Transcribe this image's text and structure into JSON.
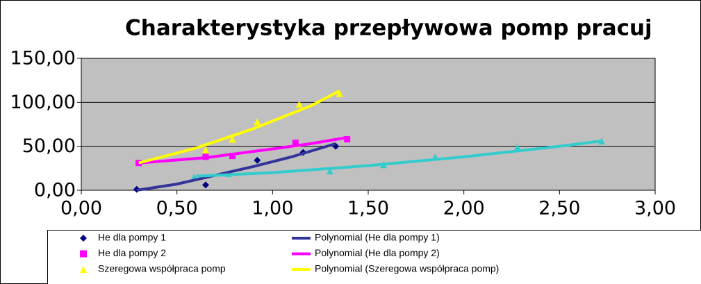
{
  "chart_data": {
    "type": "scatter",
    "title": "Charakterystyka przepływowa pomp pracuj",
    "xlim": [
      0,
      3
    ],
    "ylim": [
      0,
      150
    ],
    "xticks": [
      {
        "value": 0,
        "label": "0,00"
      },
      {
        "value": 0.5,
        "label": "0,50"
      },
      {
        "value": 1,
        "label": "1,00"
      },
      {
        "value": 1.5,
        "label": "1,50"
      },
      {
        "value": 2,
        "label": "2,00"
      },
      {
        "value": 2.5,
        "label": "2,50"
      },
      {
        "value": 3,
        "label": "3,00"
      }
    ],
    "yticks": [
      {
        "value": 0,
        "label": "0,00"
      },
      {
        "value": 50,
        "label": "50,00"
      },
      {
        "value": 100,
        "label": "100,00"
      },
      {
        "value": 150,
        "label": "150,00"
      }
    ],
    "grid": true,
    "plot_background": "#c0c0c0",
    "legend": "bottom",
    "series": [
      {
        "name": "He dla pompy 1",
        "color": "#000080",
        "marker": "diamond",
        "x": [
          0.29,
          0.65,
          0.92,
          1.16,
          1.33
        ],
        "values": [
          1,
          6,
          34,
          43,
          50
        ]
      },
      {
        "name": "He dla pompy 2",
        "color": "#ff00ff",
        "marker": "square",
        "x": [
          0.3,
          0.65,
          0.79,
          1.12,
          1.39
        ],
        "values": [
          31,
          38,
          39,
          54,
          58
        ]
      },
      {
        "name": "Szeregowa współpraca pomp",
        "color": "#ffff00",
        "marker": "triangle",
        "x": [
          0.65,
          0.79,
          0.92,
          1.14,
          1.35
        ],
        "values": [
          46,
          58,
          78,
          98,
          110
        ]
      },
      {
        "color": "#33cccc",
        "marker": "triangle",
        "x": [
          0.59,
          0.77,
          1.3,
          1.58,
          1.85,
          2.28,
          2.72
        ],
        "values": [
          15,
          19,
          22,
          29,
          38,
          49,
          56
        ]
      },
      {
        "name": "Polynomial (He dla pompy 1)",
        "color": "#333399",
        "marker": "line",
        "x": [
          0.29,
          0.5,
          0.7,
          0.9,
          1.1,
          1.33
        ],
        "values": [
          0,
          7,
          17,
          27,
          38,
          53
        ]
      },
      {
        "name": "Polynomial (He dla pompy 2)",
        "color": "#ff00ff",
        "marker": "line",
        "x": [
          0.3,
          0.65,
          1.0,
          1.2,
          1.39
        ],
        "values": [
          31,
          37,
          47,
          53,
          60
        ]
      },
      {
        "name": "Polynomial (Szeregowa współpraca pomp)",
        "color": "#ffff00",
        "marker": "line",
        "x": [
          0.3,
          0.6,
          0.9,
          1.2,
          1.35
        ],
        "values": [
          31,
          48,
          70,
          96,
          113
        ]
      },
      {
        "color": "#33cccc",
        "marker": "line",
        "x": [
          0.6,
          1.0,
          1.5,
          2.0,
          2.5,
          2.72
        ],
        "values": [
          16,
          20,
          28,
          38,
          50,
          56
        ]
      }
    ]
  }
}
